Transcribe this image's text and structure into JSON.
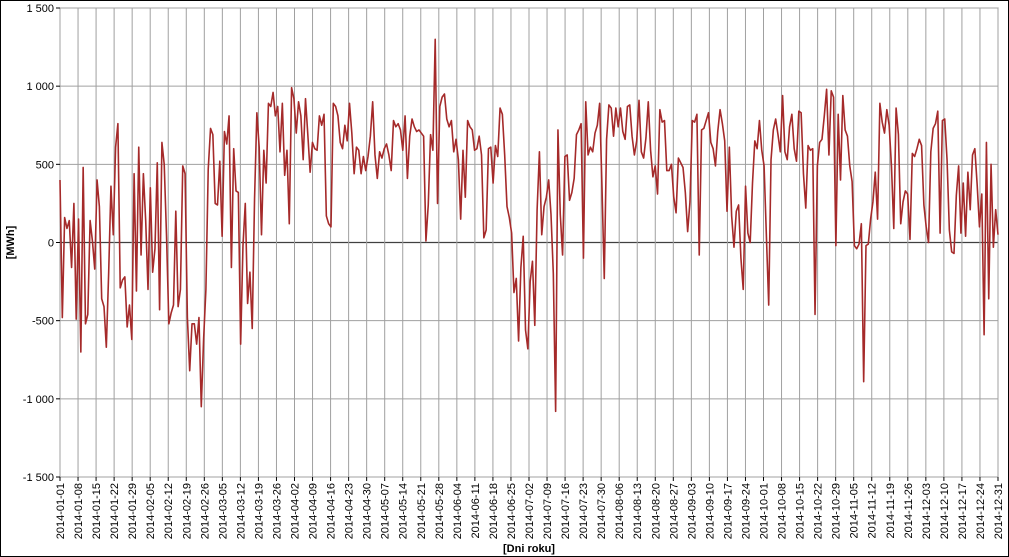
{
  "chart_data": {
    "type": "line",
    "title": "",
    "xlabel": "[Dni roku]",
    "ylabel": "[MWh]",
    "ylim": [
      -1500,
      1500
    ],
    "y_ticks": [
      1500,
      1000,
      500,
      0,
      -500,
      -1000,
      -1500
    ],
    "y_tick_labels": [
      "1 500",
      "1 000",
      "500",
      "0",
      "-500",
      "-1 000",
      "-1 500"
    ],
    "x_range": [
      "2014-01-01",
      "2014-12-31"
    ],
    "x_ticks": [
      "2014-01-01",
      "2014-01-08",
      "2014-01-15",
      "2014-01-22",
      "2014-01-29",
      "2014-02-05",
      "2014-02-12",
      "2014-02-19",
      "2014-02-26",
      "2014-03-05",
      "2014-03-12",
      "2014-03-19",
      "2014-03-26",
      "2014-04-02",
      "2014-04-09",
      "2014-04-16",
      "2014-04-23",
      "2014-04-30",
      "2014-05-07",
      "2014-05-14",
      "2014-05-21",
      "2014-05-28",
      "2014-06-04",
      "2014-06-11",
      "2014-06-18",
      "2014-06-25",
      "2014-07-02",
      "2014-07-09",
      "2014-07-16",
      "2014-07-23",
      "2014-07-30",
      "2014-08-06",
      "2014-08-13",
      "2014-08-20",
      "2014-08-27",
      "2014-09-03",
      "2014-09-10",
      "2014-09-17",
      "2014-09-24",
      "2014-10-01",
      "2014-10-08",
      "2014-10-15",
      "2014-10-22",
      "2014-10-29",
      "2014-11-05",
      "2014-11-12",
      "2014-11-19",
      "2014-11-26",
      "2014-12-03",
      "2014-12-10",
      "2014-12-17",
      "2014-12-24",
      "2014-12-31"
    ],
    "grid": true,
    "colors": {
      "line": "#a52a2a",
      "grid": "#a0a0a0",
      "zero_line": "#404040"
    },
    "series": [
      {
        "values": [
          400,
          -480,
          160,
          90,
          140,
          -160,
          250,
          -490,
          150,
          -700,
          480,
          -520,
          -460,
          140,
          10,
          -170,
          400,
          230,
          -360,
          -410,
          -670,
          -200,
          360,
          50,
          610,
          760,
          -290,
          -240,
          -220,
          -540,
          -400,
          -620,
          440,
          -310,
          610,
          -80,
          440,
          140,
          -300,
          350,
          -190,
          -40,
          510,
          -430,
          640,
          500,
          40,
          -520,
          -450,
          -400,
          200,
          -410,
          -300,
          490,
          440,
          -480,
          -820,
          -520,
          -520,
          -650,
          -480,
          -1050,
          -620,
          -300,
          470,
          730,
          690,
          250,
          240,
          520,
          40,
          710,
          630,
          810,
          -160,
          600,
          330,
          320,
          -650,
          -20,
          250,
          -390,
          -190,
          -550,
          280,
          830,
          610,
          50,
          590,
          380,
          890,
          870,
          960,
          810,
          870,
          580,
          890,
          430,
          590,
          120,
          990,
          920,
          700,
          900,
          810,
          530,
          920,
          690,
          450,
          640,
          600,
          590,
          810,
          750,
          820,
          170,
          120,
          100,
          890,
          870,
          810,
          640,
          600,
          750,
          650,
          890,
          700,
          440,
          610,
          590,
          440,
          550,
          460,
          550,
          680,
          900,
          560,
          410,
          580,
          540,
          600,
          630,
          560,
          460,
          780,
          740,
          760,
          720,
          590,
          810,
          410,
          680,
          790,
          740,
          710,
          720,
          700,
          680,
          10,
          240,
          690,
          590,
          1300,
          250,
          870,
          930,
          950,
          790,
          740,
          780,
          580,
          660,
          530,
          150,
          590,
          290,
          780,
          740,
          720,
          590,
          600,
          680,
          560,
          30,
          80,
          600,
          610,
          380,
          620,
          550,
          860,
          820,
          560,
          230,
          160,
          60,
          -320,
          -230,
          -630,
          -160,
          40,
          -560,
          -680,
          -250,
          -120,
          -530,
          210,
          580,
          50,
          230,
          290,
          400,
          180,
          -200,
          -1080,
          720,
          180,
          -80,
          550,
          560,
          270,
          320,
          410,
          690,
          720,
          760,
          -100,
          900,
          560,
          610,
          580,
          700,
          750,
          890,
          360,
          -230,
          660,
          880,
          860,
          680,
          860,
          740,
          860,
          710,
          660,
          870,
          880,
          680,
          560,
          650,
          910,
          580,
          540,
          670,
          900,
          590,
          420,
          490,
          310,
          850,
          770,
          780,
          460,
          460,
          500,
          290,
          190,
          540,
          510,
          480,
          320,
          70,
          260,
          780,
          770,
          820,
          -80,
          720,
          730,
          780,
          830,
          640,
          600,
          490,
          710,
          850,
          760,
          650,
          200,
          610,
          170,
          -30,
          200,
          240,
          -100,
          -300,
          360,
          60,
          0,
          380,
          650,
          600,
          780,
          590,
          490,
          40,
          -400,
          530,
          720,
          790,
          690,
          580,
          940,
          580,
          530,
          740,
          820,
          600,
          520,
          840,
          830,
          440,
          220,
          620,
          590,
          600,
          -460,
          490,
          640,
          660,
          810,
          980,
          560,
          970,
          930,
          -20,
          820,
          400,
          940,
          720,
          680,
          490,
          390,
          -20,
          -40,
          -10,
          120,
          -890,
          -20,
          -10,
          150,
          260,
          450,
          150,
          890,
          770,
          700,
          850,
          750,
          490,
          90,
          860,
          690,
          120,
          260,
          330,
          310,
          20,
          570,
          550,
          600,
          660,
          620,
          240,
          100,
          0,
          580,
          730,
          760,
          840,
          60,
          780,
          790,
          530,
          80,
          -60,
          -70,
          300,
          490,
          60,
          380,
          40,
          450,
          210,
          560,
          600,
          370,
          100,
          310,
          -590,
          640,
          -360,
          500,
          -30,
          210,
          50
        ]
      }
    ]
  }
}
